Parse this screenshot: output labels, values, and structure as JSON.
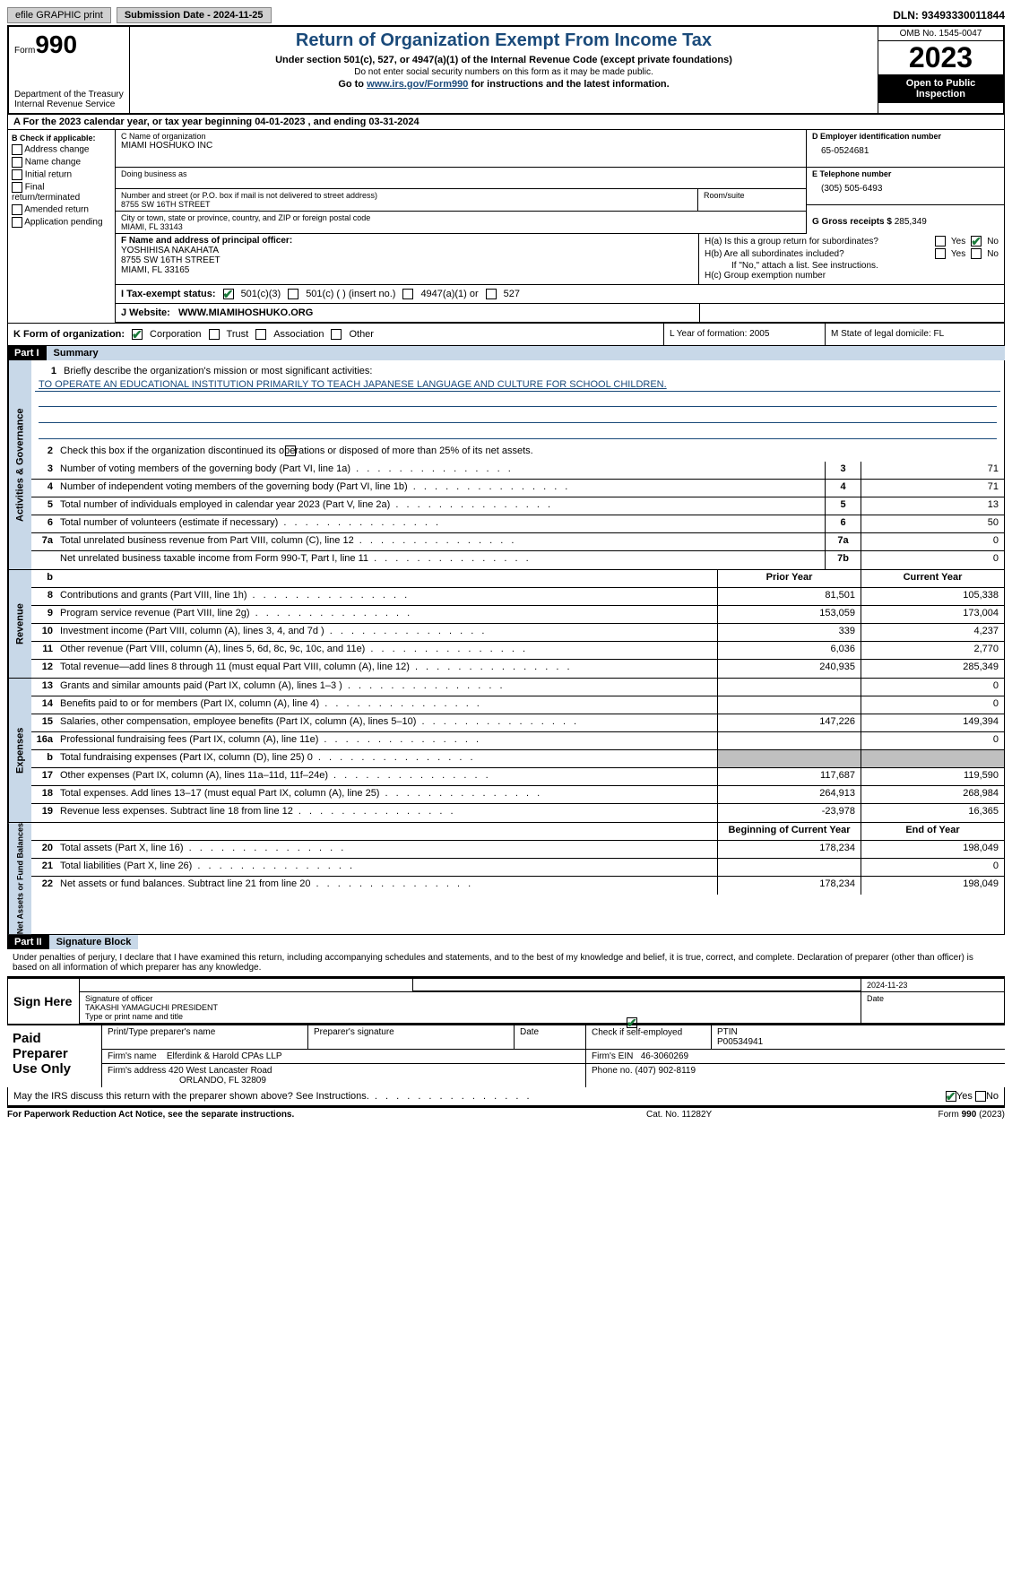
{
  "topbar": {
    "efile": "efile GRAPHIC print",
    "submission": "Submission Date - 2024-11-25",
    "dln": "DLN: 93493330011844"
  },
  "header": {
    "form_word": "Form",
    "form_num": "990",
    "dept": "Department of the Treasury\nInternal Revenue Service",
    "title": "Return of Organization Exempt From Income Tax",
    "sub1": "Under section 501(c), 527, or 4947(a)(1) of the Internal Revenue Code (except private foundations)",
    "sub2": "Do not enter social security numbers on this form as it may be made public.",
    "sub3_pre": "Go to ",
    "sub3_link": "www.irs.gov/Form990",
    "sub3_post": " for instructions and the latest information.",
    "omb": "OMB No. 1545-0047",
    "year": "2023",
    "open": "Open to Public Inspection"
  },
  "section_a": "A For the 2023 calendar year, or tax year beginning 04-01-2023    , and ending 03-31-2024",
  "box_b": {
    "label": "B Check if applicable:",
    "opts": [
      "Address change",
      "Name change",
      "Initial return",
      "Final return/terminated",
      "Amended return",
      "Application pending"
    ]
  },
  "box_c": {
    "name_lbl": "C Name of organization",
    "name_val": "MIAMI HOSHUKO INC",
    "dba_lbl": "Doing business as",
    "addr_lbl": "Number and street (or P.O. box if mail is not delivered to street address)",
    "addr_val": "8755 SW 16TH STREET",
    "room_lbl": "Room/suite",
    "city_lbl": "City or town, state or province, country, and ZIP or foreign postal code",
    "city_val": "MIAMI, FL  33143"
  },
  "box_d": {
    "lbl": "D Employer identification number",
    "val": "65-0524681"
  },
  "box_e": {
    "lbl": "E Telephone number",
    "val": "(305) 505-6493"
  },
  "box_g": {
    "lbl": "G Gross receipts $",
    "val": "285,349"
  },
  "box_f": {
    "lbl": "F  Name and address of principal officer:",
    "name": "YOSHIHISA NAKAHATA",
    "addr": "8755 SW 16TH STREET",
    "city": "MIAMI, FL  33165"
  },
  "box_h": {
    "ha": "H(a)  Is this a group return for subordinates?",
    "hb": "H(b)  Are all subordinates included?",
    "hb_note": "If \"No,\" attach a list. See instructions.",
    "hc": "H(c)  Group exemption number",
    "yes": "Yes",
    "no": "No"
  },
  "row_i": {
    "lbl": "I  Tax-exempt status:",
    "o1": "501(c)(3)",
    "o2": "501(c) (  ) (insert no.)",
    "o3": "4947(a)(1) or",
    "o4": "527"
  },
  "row_j": {
    "lbl": "J  Website:",
    "val": "WWW.MIAMIHOSHUKO.ORG"
  },
  "row_k": {
    "lbl": "K Form of organization:",
    "opts": [
      "Corporation",
      "Trust",
      "Association",
      "Other"
    ],
    "l": "L Year of formation: 2005",
    "m": "M State of legal domicile: FL"
  },
  "parts": {
    "p1": "Part I",
    "p1t": "Summary",
    "p2": "Part II",
    "p2t": "Signature Block"
  },
  "summary": {
    "line1_lbl": "Briefly describe the organization's mission or most significant activities:",
    "line1_val": "TO OPERATE AN EDUCATIONAL INSTITUTION PRIMARILY TO TEACH JAPANESE LANGUAGE AND CULTURE FOR SCHOOL CHILDREN.",
    "line2": "Check this box       if the organization discontinued its operations or disposed of more than 25% of its net assets.",
    "gov": [
      {
        "n": "3",
        "d": "Number of voting members of the governing body (Part VI, line 1a)",
        "k": "3",
        "v": "71"
      },
      {
        "n": "4",
        "d": "Number of independent voting members of the governing body (Part VI, line 1b)",
        "k": "4",
        "v": "71"
      },
      {
        "n": "5",
        "d": "Total number of individuals employed in calendar year 2023 (Part V, line 2a)",
        "k": "5",
        "v": "13"
      },
      {
        "n": "6",
        "d": "Total number of volunteers (estimate if necessary)",
        "k": "6",
        "v": "50"
      },
      {
        "n": "7a",
        "d": "Total unrelated business revenue from Part VIII, column (C), line 12",
        "k": "7a",
        "v": "0"
      },
      {
        "n": "",
        "d": "Net unrelated business taxable income from Form 990-T, Part I, line 11",
        "k": "7b",
        "v": "0"
      }
    ],
    "hdr_b": "b",
    "hdr_prior": "Prior Year",
    "hdr_curr": "Current Year",
    "rev": [
      {
        "n": "8",
        "d": "Contributions and grants (Part VIII, line 1h)",
        "p": "81,501",
        "c": "105,338"
      },
      {
        "n": "9",
        "d": "Program service revenue (Part VIII, line 2g)",
        "p": "153,059",
        "c": "173,004"
      },
      {
        "n": "10",
        "d": "Investment income (Part VIII, column (A), lines 3, 4, and 7d )",
        "p": "339",
        "c": "4,237"
      },
      {
        "n": "11",
        "d": "Other revenue (Part VIII, column (A), lines 5, 6d, 8c, 9c, 10c, and 11e)",
        "p": "6,036",
        "c": "2,770"
      },
      {
        "n": "12",
        "d": "Total revenue—add lines 8 through 11 (must equal Part VIII, column (A), line 12)",
        "p": "240,935",
        "c": "285,349"
      }
    ],
    "exp": [
      {
        "n": "13",
        "d": "Grants and similar amounts paid (Part IX, column (A), lines 1–3 )",
        "p": "",
        "c": "0"
      },
      {
        "n": "14",
        "d": "Benefits paid to or for members (Part IX, column (A), line 4)",
        "p": "",
        "c": "0"
      },
      {
        "n": "15",
        "d": "Salaries, other compensation, employee benefits (Part IX, column (A), lines 5–10)",
        "p": "147,226",
        "c": "149,394"
      },
      {
        "n": "16a",
        "d": "Professional fundraising fees (Part IX, column (A), line 11e)",
        "p": "",
        "c": "0"
      },
      {
        "n": "b",
        "d": "Total fundraising expenses (Part IX, column (D), line 25) 0",
        "p": "GREY",
        "c": "GREY"
      },
      {
        "n": "17",
        "d": "Other expenses (Part IX, column (A), lines 11a–11d, 11f–24e)",
        "p": "117,687",
        "c": "119,590"
      },
      {
        "n": "18",
        "d": "Total expenses. Add lines 13–17 (must equal Part IX, column (A), line 25)",
        "p": "264,913",
        "c": "268,984"
      },
      {
        "n": "19",
        "d": "Revenue less expenses. Subtract line 18 from line 12",
        "p": "-23,978",
        "c": "16,365"
      }
    ],
    "na_hdr_b": "Beginning of Current Year",
    "na_hdr_e": "End of Year",
    "na": [
      {
        "n": "20",
        "d": "Total assets (Part X, line 16)",
        "p": "178,234",
        "c": "198,049"
      },
      {
        "n": "21",
        "d": "Total liabilities (Part X, line 26)",
        "p": "",
        "c": "0"
      },
      {
        "n": "22",
        "d": "Net assets or fund balances. Subtract line 21 from line 20",
        "p": "178,234",
        "c": "198,049"
      }
    ],
    "side_gov": "Activities & Governance",
    "side_rev": "Revenue",
    "side_exp": "Expenses",
    "side_na": "Net Assets or Fund Balances"
  },
  "sig": {
    "penalties": "Under penalties of perjury, I declare that I have examined this return, including accompanying schedules and statements, and to the best of my knowledge and belief, it is true, correct, and complete. Declaration of preparer (other than officer) is based on all information of which preparer has any knowledge.",
    "sign_here": "Sign Here",
    "date_top": "2024-11-23",
    "sig_lbl": "Signature of officer",
    "officer": "TAKASHI YAMAGUCHI  PRESIDENT",
    "type_lbl": "Type or print name and title",
    "date_lbl": "Date",
    "paid": "Paid Preparer Use Only",
    "prep_name_lbl": "Print/Type preparer's name",
    "prep_sig_lbl": "Preparer's signature",
    "self_emp": "Check          if self-employed",
    "ptin_lbl": "PTIN",
    "ptin": "P00534941",
    "firm_name_lbl": "Firm's name",
    "firm_name": "Elferdink & Harold CPAs LLP",
    "firm_ein_lbl": "Firm's EIN",
    "firm_ein": "46-3060269",
    "firm_addr_lbl": "Firm's address",
    "firm_addr": "420 West Lancaster Road",
    "firm_city": "ORLANDO, FL  32809",
    "phone_lbl": "Phone no.",
    "phone": "(407) 902-8119",
    "discuss": "May the IRS discuss this return with the preparer shown above? See Instructions.",
    "yes": "Yes",
    "no": "No"
  },
  "footer": {
    "l": "For Paperwork Reduction Act Notice, see the separate instructions.",
    "m": "Cat. No. 11282Y",
    "r_pre": "Form ",
    "r_num": "990",
    "r_post": " (2023)"
  }
}
